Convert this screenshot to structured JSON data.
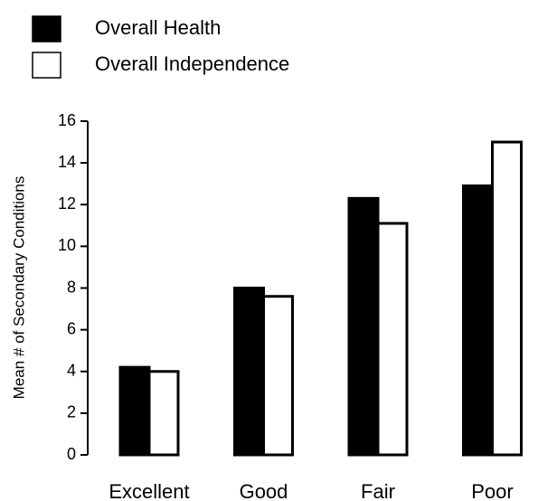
{
  "chart_data": {
    "type": "bar",
    "y_label": "Mean # of Secondary Conditions",
    "categories": [
      "Excellent",
      "Good",
      "Fair",
      "Poor"
    ],
    "series": [
      {
        "name": "Overall Health",
        "color": "#000000",
        "values": [
          4.2,
          8.0,
          12.3,
          12.9
        ]
      },
      {
        "name": "Overall Independence",
        "color": "#ffffff",
        "values": [
          4.0,
          7.6,
          11.1,
          15.0
        ]
      }
    ],
    "ylim": [
      0,
      16
    ],
    "yticks": [
      0,
      2,
      4,
      6,
      8,
      10,
      12,
      14,
      16
    ],
    "legend": "top-left"
  }
}
